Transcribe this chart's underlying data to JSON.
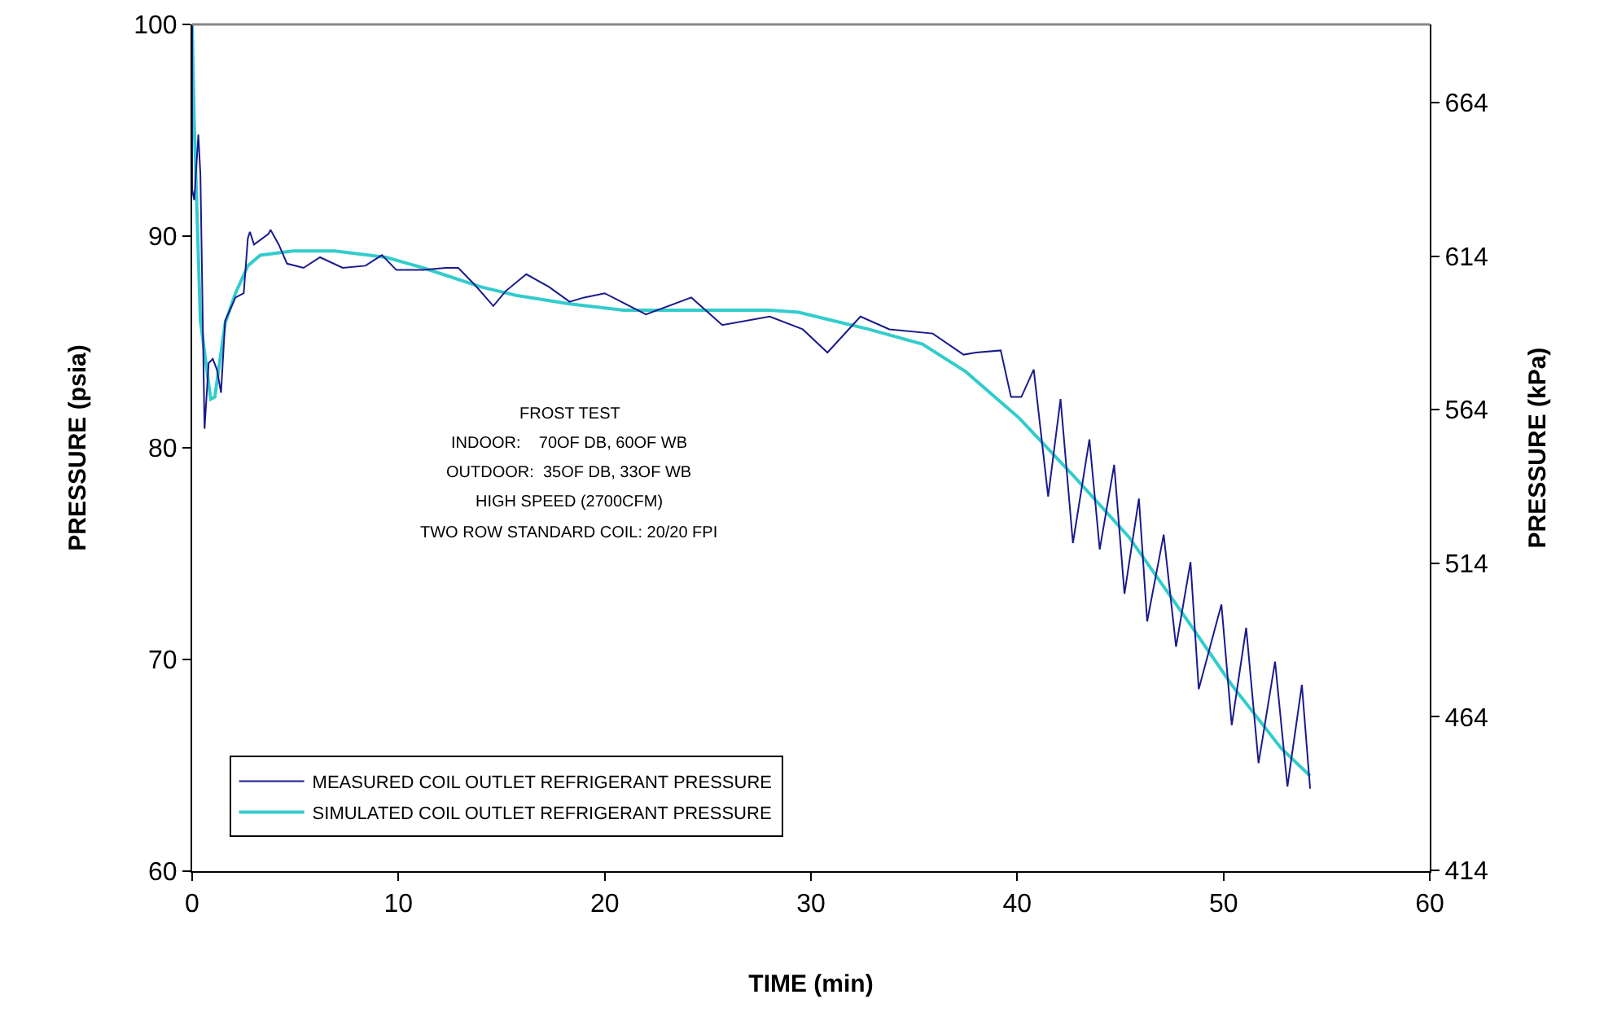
{
  "chart_data": {
    "type": "line",
    "xlabel": "TIME (min)",
    "ylabel": "PRESSURE (psia)",
    "y2label": "PRESSURE (kPa)",
    "xlim": [
      0,
      60
    ],
    "xticks": [
      0,
      10,
      20,
      30,
      40,
      50,
      60
    ],
    "ylim": [
      60,
      100
    ],
    "yticks": [
      60,
      70,
      80,
      90,
      100
    ],
    "y2lim": [
      413.7,
      689.5
    ],
    "y2ticks": [
      414,
      464,
      514,
      564,
      614,
      664
    ],
    "grid": false,
    "legend": "bottom left",
    "marker": "none",
    "line_style": "solid",
    "annotations": [
      "FROST TEST",
      "INDOOR:    70OF DB, 60OF WB",
      "OUTDOOR:  35OF DB, 33OF WB",
      "HIGH SPEED (2700CFM)",
      "TWO ROW STANDARD COIL: 20/20 FPI"
    ],
    "series": [
      {
        "name": "MEASURED COIL OUTLET REFRIGERANT PRESSURE",
        "color": "#1a1a8c",
        "x": [
          0,
          0.0,
          0.1,
          0.3,
          0.4,
          0.6,
          0.8,
          1.0,
          1.2,
          1.4,
          1.6,
          2.1,
          2.5,
          2.7,
          2.8,
          3.0,
          3.7,
          3.8,
          4.2,
          4.6,
          5.4,
          6.2,
          7.3,
          8.4,
          9.2,
          9.9,
          11.2,
          12.3,
          12.9,
          13.7,
          14.6,
          15.2,
          16.2,
          17.3,
          18.3,
          19.0,
          20.0,
          22.0,
          24.2,
          25.7,
          28.0,
          29.6,
          30.8,
          32.4,
          33.8,
          35.9,
          37.4,
          38.0,
          39.2,
          39.7,
          40.2,
          40.8,
          41.5,
          42.1,
          42.7,
          43.5,
          44.0,
          44.7,
          45.2,
          45.9,
          46.3,
          47.1,
          47.7,
          48.4,
          48.8,
          49.9,
          50.4,
          51.1,
          51.7,
          52.5,
          53.1,
          53.8,
          54.2
        ],
        "values": [
          100,
          92.2,
          91.7,
          94.8,
          92.9,
          80.9,
          84.0,
          84.2,
          83.7,
          82.6,
          86.0,
          87.1,
          87.3,
          89.9,
          90.2,
          89.6,
          90.1,
          90.3,
          89.6,
          88.7,
          88.5,
          89.0,
          88.5,
          88.6,
          89.1,
          88.4,
          88.4,
          88.5,
          88.5,
          87.7,
          86.7,
          87.4,
          88.2,
          87.6,
          86.9,
          87.1,
          87.3,
          86.3,
          87.1,
          85.8,
          86.2,
          85.6,
          84.5,
          86.2,
          85.6,
          85.4,
          84.4,
          84.5,
          84.6,
          82.4,
          82.4,
          83.7,
          77.7,
          82.3,
          75.5,
          80.4,
          75.2,
          79.2,
          73.1,
          77.6,
          71.8,
          75.9,
          70.6,
          74.6,
          68.6,
          72.6,
          66.9,
          71.5,
          65.1,
          69.9,
          64.0,
          68.8,
          63.9
        ]
      },
      {
        "name": "SIMULATED COIL OUTLET REFRIGERANT PRESSURE",
        "color": "#33cccc",
        "x": [
          0,
          0.1,
          0.4,
          0.9,
          1.1,
          1.6,
          2.1,
          2.7,
          3.3,
          4.9,
          6.9,
          9.4,
          11.2,
          14.0,
          15.7,
          18.3,
          20.9,
          28.0,
          29.4,
          32.8,
          35.4,
          37.5,
          40.1,
          42.8,
          45.4,
          48.0,
          50.4,
          52.8,
          54.2
        ],
        "values": [
          100,
          95.3,
          86.0,
          82.3,
          82.4,
          85.9,
          87.3,
          88.6,
          89.1,
          89.3,
          89.3,
          89.0,
          88.5,
          87.6,
          87.2,
          86.8,
          86.5,
          86.5,
          86.4,
          85.6,
          84.9,
          83.6,
          81.4,
          78.6,
          75.8,
          72.2,
          68.8,
          65.8,
          64.5
        ]
      }
    ]
  }
}
